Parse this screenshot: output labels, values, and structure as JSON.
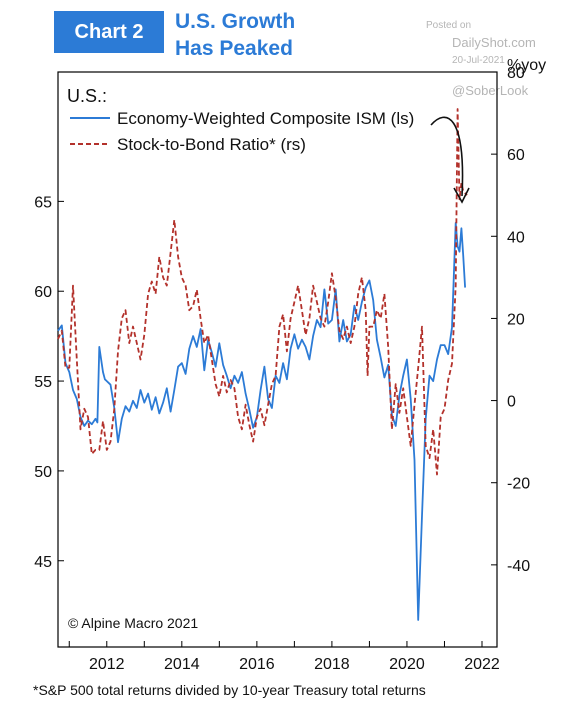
{
  "header": {
    "badge": "Chart 2",
    "title_line1": "U.S. Growth",
    "title_line2": "Has Peaked"
  },
  "watermark": {
    "posted": "Posted on",
    "site": "DailyShot.com",
    "date": "20-Jul-2021",
    "handle": "@SoberLook"
  },
  "footnote": "*S&P 500 total returns divided by 10-year Treasury total returns",
  "chart_data": {
    "type": "line",
    "title": "U.S.:",
    "source": "© Alpine Macro 2021",
    "right_axis_unit": "%yoy",
    "x_ticks": [
      "2012",
      "2014",
      "2016",
      "2018",
      "2020",
      "2022"
    ],
    "xlim": [
      2010.7,
      2022.4
    ],
    "left_axis": {
      "ylim": [
        40.2,
        72.2
      ],
      "ticks": [
        45,
        50,
        55,
        60,
        65
      ]
    },
    "right_axis": {
      "ylim": [
        -60,
        80
      ],
      "ticks": [
        -40,
        -20,
        0,
        20,
        40,
        60,
        80
      ]
    },
    "legend_position": "top-left",
    "series": [
      {
        "name": "Economy-Weighted Composite ISM (ls)",
        "axis": "left",
        "color": "#2c7bd6",
        "style": "solid",
        "points": [
          [
            2010.7,
            57.8
          ],
          [
            2010.8,
            58.1
          ],
          [
            2010.9,
            56.0
          ],
          [
            2011.0,
            55.5
          ],
          [
            2011.1,
            54.5
          ],
          [
            2011.2,
            54.0
          ],
          [
            2011.3,
            53.0
          ],
          [
            2011.4,
            52.5
          ],
          [
            2011.5,
            52.8
          ],
          [
            2011.6,
            52.6
          ],
          [
            2011.7,
            52.9
          ],
          [
            2011.75,
            52.7
          ],
          [
            2011.8,
            56.9
          ],
          [
            2011.9,
            55.5
          ],
          [
            2011.95,
            55.1
          ],
          [
            2012.0,
            55.0
          ],
          [
            2012.1,
            54.8
          ],
          [
            2012.2,
            53.5
          ],
          [
            2012.3,
            51.6
          ],
          [
            2012.4,
            52.9
          ],
          [
            2012.5,
            53.6
          ],
          [
            2012.6,
            53.3
          ],
          [
            2012.7,
            53.9
          ],
          [
            2012.8,
            53.5
          ],
          [
            2012.9,
            54.5
          ],
          [
            2013.0,
            53.8
          ],
          [
            2013.1,
            54.3
          ],
          [
            2013.2,
            53.4
          ],
          [
            2013.3,
            54.1
          ],
          [
            2013.4,
            53.2
          ],
          [
            2013.5,
            53.8
          ],
          [
            2013.6,
            54.6
          ],
          [
            2013.7,
            53.3
          ],
          [
            2013.8,
            54.5
          ],
          [
            2013.9,
            55.8
          ],
          [
            2014.0,
            56.0
          ],
          [
            2014.1,
            55.4
          ],
          [
            2014.2,
            56.8
          ],
          [
            2014.3,
            57.5
          ],
          [
            2014.4,
            56.9
          ],
          [
            2014.5,
            57.9
          ],
          [
            2014.6,
            55.6
          ],
          [
            2014.7,
            57.3
          ],
          [
            2014.8,
            56.6
          ],
          [
            2014.9,
            55.8
          ],
          [
            2015.0,
            57.1
          ],
          [
            2015.1,
            55.9
          ],
          [
            2015.2,
            55.3
          ],
          [
            2015.3,
            54.6
          ],
          [
            2015.4,
            55.3
          ],
          [
            2015.5,
            54.9
          ],
          [
            2015.6,
            55.5
          ],
          [
            2015.7,
            54.3
          ],
          [
            2015.8,
            53.4
          ],
          [
            2015.9,
            52.4
          ],
          [
            2016.0,
            53.0
          ],
          [
            2016.1,
            54.5
          ],
          [
            2016.2,
            55.8
          ],
          [
            2016.3,
            54.0
          ],
          [
            2016.4,
            53.5
          ],
          [
            2016.5,
            55.3
          ],
          [
            2016.6,
            54.9
          ],
          [
            2016.7,
            56.0
          ],
          [
            2016.8,
            55.1
          ],
          [
            2016.9,
            56.8
          ],
          [
            2017.0,
            57.6
          ],
          [
            2017.1,
            56.8
          ],
          [
            2017.2,
            57.3
          ],
          [
            2017.3,
            56.9
          ],
          [
            2017.4,
            56.2
          ],
          [
            2017.5,
            57.5
          ],
          [
            2017.6,
            58.4
          ],
          [
            2017.7,
            58.0
          ],
          [
            2017.8,
            60.1
          ],
          [
            2017.9,
            58.2
          ],
          [
            2018.0,
            58.4
          ],
          [
            2018.1,
            60.1
          ],
          [
            2018.2,
            57.2
          ],
          [
            2018.3,
            58.4
          ],
          [
            2018.4,
            57.2
          ],
          [
            2018.5,
            57.6
          ],
          [
            2018.6,
            59.2
          ],
          [
            2018.7,
            58.4
          ],
          [
            2018.8,
            59.4
          ],
          [
            2018.9,
            60.2
          ],
          [
            2019.0,
            60.6
          ],
          [
            2019.1,
            59.5
          ],
          [
            2019.2,
            57.3
          ],
          [
            2019.3,
            56.3
          ],
          [
            2019.4,
            55.2
          ],
          [
            2019.5,
            55.9
          ],
          [
            2019.6,
            53.1
          ],
          [
            2019.7,
            52.5
          ],
          [
            2019.8,
            54.2
          ],
          [
            2019.9,
            55.3
          ],
          [
            2020.0,
            56.2
          ],
          [
            2020.1,
            54.0
          ],
          [
            2020.2,
            50.6
          ],
          [
            2020.3,
            41.7
          ],
          [
            2020.4,
            47.5
          ],
          [
            2020.5,
            52.9
          ],
          [
            2020.6,
            55.3
          ],
          [
            2020.7,
            55.0
          ],
          [
            2020.8,
            56.2
          ],
          [
            2020.9,
            57.0
          ],
          [
            2021.0,
            57.0
          ],
          [
            2021.1,
            56.5
          ],
          [
            2021.2,
            58.0
          ],
          [
            2021.3,
            63.8
          ],
          [
            2021.35,
            62.5
          ],
          [
            2021.4,
            62.2
          ],
          [
            2021.45,
            63.5
          ],
          [
            2021.5,
            62.0
          ],
          [
            2021.55,
            60.2
          ]
        ]
      },
      {
        "name": "Stock-to-Bond Ratio* (rs)",
        "axis": "right",
        "color": "#b3312b",
        "style": "dashed",
        "points": [
          [
            2010.7,
            15
          ],
          [
            2010.8,
            17
          ],
          [
            2010.9,
            8
          ],
          [
            2011.0,
            8
          ],
          [
            2011.1,
            28
          ],
          [
            2011.2,
            10
          ],
          [
            2011.3,
            -7
          ],
          [
            2011.4,
            -2
          ],
          [
            2011.5,
            -4
          ],
          [
            2011.6,
            -13
          ],
          [
            2011.7,
            -12
          ],
          [
            2011.8,
            -12
          ],
          [
            2011.9,
            -5
          ],
          [
            2012.0,
            -12
          ],
          [
            2012.1,
            -10
          ],
          [
            2012.2,
            -2
          ],
          [
            2012.3,
            12
          ],
          [
            2012.4,
            20
          ],
          [
            2012.5,
            22
          ],
          [
            2012.6,
            14
          ],
          [
            2012.7,
            18
          ],
          [
            2012.8,
            14
          ],
          [
            2012.9,
            10
          ],
          [
            2013.0,
            16
          ],
          [
            2013.1,
            26
          ],
          [
            2013.2,
            29
          ],
          [
            2013.3,
            26
          ],
          [
            2013.4,
            35
          ],
          [
            2013.5,
            30
          ],
          [
            2013.6,
            28
          ],
          [
            2013.7,
            36
          ],
          [
            2013.8,
            44
          ],
          [
            2013.9,
            35
          ],
          [
            2014.0,
            30
          ],
          [
            2014.1,
            28
          ],
          [
            2014.2,
            22
          ],
          [
            2014.3,
            23
          ],
          [
            2014.4,
            27
          ],
          [
            2014.5,
            20
          ],
          [
            2014.6,
            14
          ],
          [
            2014.7,
            16
          ],
          [
            2014.8,
            10
          ],
          [
            2014.9,
            4
          ],
          [
            2015.0,
            1
          ],
          [
            2015.1,
            6
          ],
          [
            2015.2,
            2
          ],
          [
            2015.3,
            5
          ],
          [
            2015.4,
            3
          ],
          [
            2015.5,
            -4
          ],
          [
            2015.6,
            -7
          ],
          [
            2015.7,
            -1
          ],
          [
            2015.8,
            -6
          ],
          [
            2015.9,
            -10
          ],
          [
            2016.0,
            -4
          ],
          [
            2016.1,
            -2
          ],
          [
            2016.2,
            -6
          ],
          [
            2016.3,
            -1
          ],
          [
            2016.4,
            4
          ],
          [
            2016.5,
            6
          ],
          [
            2016.6,
            18
          ],
          [
            2016.7,
            21
          ],
          [
            2016.8,
            12
          ],
          [
            2016.9,
            20
          ],
          [
            2017.0,
            24
          ],
          [
            2017.1,
            28
          ],
          [
            2017.2,
            22
          ],
          [
            2017.3,
            16
          ],
          [
            2017.4,
            20
          ],
          [
            2017.5,
            28
          ],
          [
            2017.6,
            24
          ],
          [
            2017.7,
            20
          ],
          [
            2017.8,
            18
          ],
          [
            2017.9,
            24
          ],
          [
            2018.0,
            31
          ],
          [
            2018.1,
            25
          ],
          [
            2018.2,
            17
          ],
          [
            2018.3,
            15
          ],
          [
            2018.4,
            18
          ],
          [
            2018.5,
            14
          ],
          [
            2018.6,
            18
          ],
          [
            2018.7,
            26
          ],
          [
            2018.8,
            30
          ],
          [
            2018.9,
            22
          ],
          [
            2018.95,
            6
          ],
          [
            2019.0,
            18
          ],
          [
            2019.1,
            18
          ],
          [
            2019.2,
            22
          ],
          [
            2019.3,
            20
          ],
          [
            2019.4,
            26
          ],
          [
            2019.5,
            13
          ],
          [
            2019.6,
            -7
          ],
          [
            2019.7,
            4
          ],
          [
            2019.8,
            -3
          ],
          [
            2019.9,
            3
          ],
          [
            2020.0,
            -4
          ],
          [
            2020.1,
            -11
          ],
          [
            2020.2,
            -1
          ],
          [
            2020.3,
            8
          ],
          [
            2020.4,
            18
          ],
          [
            2020.5,
            -11
          ],
          [
            2020.6,
            -14
          ],
          [
            2020.7,
            -7
          ],
          [
            2020.8,
            -18
          ],
          [
            2020.9,
            -4
          ],
          [
            2021.0,
            -2
          ],
          [
            2021.1,
            5
          ],
          [
            2021.2,
            9
          ],
          [
            2021.3,
            28
          ],
          [
            2021.35,
            71
          ],
          [
            2021.4,
            49
          ],
          [
            2021.45,
            53
          ],
          [
            2021.5,
            51
          ],
          [
            2021.6,
            50
          ]
        ]
      }
    ]
  }
}
